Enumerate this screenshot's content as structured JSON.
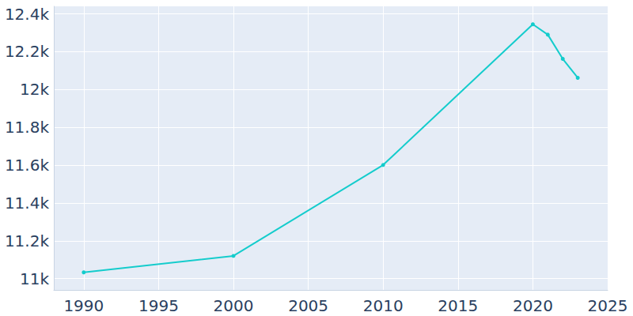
{
  "chart_data": {
    "type": "line",
    "x": [
      1990,
      2000,
      2010,
      2020,
      2021,
      2022,
      2023
    ],
    "values": [
      11033,
      11120,
      11601,
      12345,
      12290,
      12162,
      12062
    ],
    "color": "#14cccc",
    "marker": "circle",
    "xlim": [
      1988,
      2025
    ],
    "xticks": [
      1990,
      1995,
      2000,
      2005,
      2010,
      2015,
      2020,
      2025
    ],
    "ylim": [
      10940,
      12440
    ],
    "yticks": [
      {
        "value": 11000,
        "label": "11k"
      },
      {
        "value": 11200,
        "label": "11.2k"
      },
      {
        "value": 11400,
        "label": "11.4k"
      },
      {
        "value": 11600,
        "label": "11.6k"
      },
      {
        "value": 11800,
        "label": "11.8k"
      },
      {
        "value": 12000,
        "label": "12k"
      },
      {
        "value": 12200,
        "label": "12.2k"
      },
      {
        "value": 12400,
        "label": "12.4k"
      }
    ],
    "grid": true
  }
}
